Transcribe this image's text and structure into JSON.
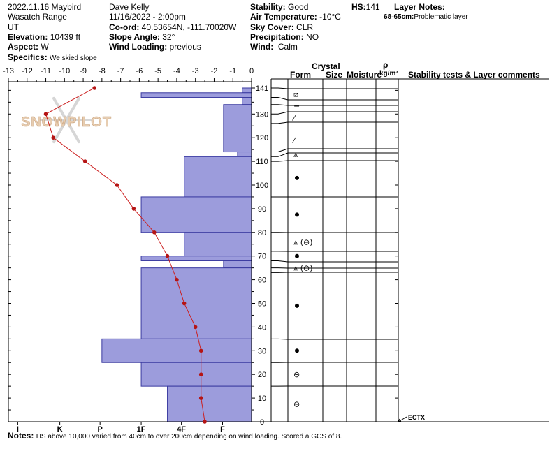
{
  "header": {
    "title": "2022.11.16 Maybird",
    "range": "Wasatch Range",
    "state": "UT",
    "elevation_label": "Elevation:",
    "elevation": "10439 ft",
    "aspect_label": "Aspect:",
    "aspect": "W",
    "specifics_label": "Specifics:",
    "specifics": "We skied slope",
    "observer": "Dave Kelly",
    "datetime": "11/16/2022 - 2:00pm",
    "coord_label": "Co-ord:",
    "coord": "40.53654N, -111.70020W",
    "slope_label": "Slope Angle:",
    "slope": "32°",
    "wind_loading_label": "Wind Loading:",
    "wind_loading": "previous",
    "stability_label": "Stability:",
    "stability": "Good",
    "air_temp_label": "Air Temperature:",
    "air_temp": "-10°C",
    "sky_label": "Sky Cover:",
    "sky": "CLR",
    "precip_label": "Precipitation:",
    "precip": "NO",
    "wind_label": "Wind:",
    "wind": "Calm",
    "hs_label": "HS:",
    "hs": "141",
    "layer_notes_label": "Layer Notes:",
    "layer_note_range": "68-65cm:",
    "layer_note_text": "Problematic layer",
    "watermark": "SNOWPILOT"
  },
  "columns": {
    "crystal": "Crystal",
    "form": "Form",
    "size": "Size",
    "moisture": "Moisture",
    "rho": "ρ",
    "density_unit": "kg/m³",
    "stability": "Stability tests & Layer comments"
  },
  "test_label": "ECTX",
  "footer": {
    "notes_label": "Notes:",
    "notes": "HS above 10,000 varied from 40cm to over 200cm depending on wind loading. Scored a GCS of 8."
  },
  "chart_data": {
    "type": "snow-profile",
    "temp_axis": {
      "ticks": [
        "-13",
        "-12",
        "-11",
        "-10",
        "-9",
        "-8",
        "-7",
        "-6",
        "-5",
        "-4",
        "-3",
        "-2",
        "-1",
        "0"
      ],
      "range": [
        -13,
        0
      ]
    },
    "height_axis": {
      "ticks": [
        "0",
        "10",
        "20",
        "30",
        "40",
        "50",
        "60",
        "70",
        "80",
        "90",
        "100",
        "110",
        "120",
        "130",
        "141"
      ],
      "range": [
        0,
        141
      ]
    },
    "hardness_axis": {
      "ticks": [
        "I",
        "K",
        "P",
        "1F",
        "4F",
        "F"
      ],
      "positions": [
        -12.5,
        -10.25,
        -8.1,
        -5.9,
        -3.75,
        -1.55
      ]
    },
    "temperature_profile": [
      {
        "height": 141,
        "temp": -8.4
      },
      {
        "height": 130,
        "temp": -11.0
      },
      {
        "height": 120,
        "temp": -10.6
      },
      {
        "height": 110,
        "temp": -8.9
      },
      {
        "height": 100,
        "temp": -7.2
      },
      {
        "height": 90,
        "temp": -6.3
      },
      {
        "height": 80,
        "temp": -5.2
      },
      {
        "height": 70,
        "temp": -4.5
      },
      {
        "height": 60,
        "temp": -4.0
      },
      {
        "height": 50,
        "temp": -3.6
      },
      {
        "height": 40,
        "temp": -3.0
      },
      {
        "height": 30,
        "temp": -2.7
      },
      {
        "height": 20,
        "temp": -2.7
      },
      {
        "height": 10,
        "temp": -2.7
      },
      {
        "height": 0,
        "temp": -2.5
      }
    ],
    "hardness_layers": [
      {
        "top": 141,
        "bottom": 139,
        "hardness": -0.5
      },
      {
        "top": 139,
        "bottom": 137,
        "hardness": -5.9
      },
      {
        "top": 137,
        "bottom": 134,
        "hardness": -0.5
      },
      {
        "top": 134,
        "bottom": 114,
        "hardness": -1.5
      },
      {
        "top": 114,
        "bottom": 112,
        "hardness": -0.75
      },
      {
        "top": 112,
        "bottom": 95,
        "hardness": -3.6
      },
      {
        "top": 95,
        "bottom": 80,
        "hardness": -5.9
      },
      {
        "top": 80,
        "bottom": 70,
        "hardness": -3.6
      },
      {
        "top": 70,
        "bottom": 68,
        "hardness": -5.9
      },
      {
        "top": 68,
        "bottom": 65,
        "hardness": -1.5
      },
      {
        "top": 65,
        "bottom": 35,
        "hardness": -5.9
      },
      {
        "top": 35,
        "bottom": 25,
        "hardness": -8.0
      },
      {
        "top": 25,
        "bottom": 15,
        "hardness": -5.9
      },
      {
        "top": 15,
        "bottom": 0,
        "hardness": -4.5
      }
    ],
    "layer_boundaries": [
      141,
      137,
      134,
      130,
      126,
      114,
      112,
      110,
      95,
      80,
      72,
      68,
      65,
      63,
      35,
      25,
      15
    ],
    "crystal_forms": [
      {
        "height": 138.5,
        "symbol": "⧄"
      },
      {
        "height": 133.5,
        "symbol": "−"
      },
      {
        "height": 128.5,
        "symbol": "⁄"
      },
      {
        "height": 119,
        "symbol": "⁄"
      },
      {
        "height": 113,
        "symbol": "⩓"
      },
      {
        "height": 103,
        "symbol": "●"
      },
      {
        "height": 87.5,
        "symbol": "●"
      },
      {
        "height": 76,
        "symbol": "⩓ (⊖)"
      },
      {
        "height": 70,
        "symbol": "●"
      },
      {
        "height": 65,
        "symbol": "⩓ (⊖)"
      },
      {
        "height": 49,
        "symbol": "●"
      },
      {
        "height": 30,
        "symbol": "●"
      },
      {
        "height": 20,
        "symbol": "⊖"
      },
      {
        "height": 7.5,
        "symbol": "⊖"
      }
    ],
    "colors": {
      "hardness_fill": "#9c9cdc",
      "hardness_stroke": "#3a3aa0",
      "temp_line": "#cc1f1f",
      "temp_point": "#b51414"
    }
  }
}
